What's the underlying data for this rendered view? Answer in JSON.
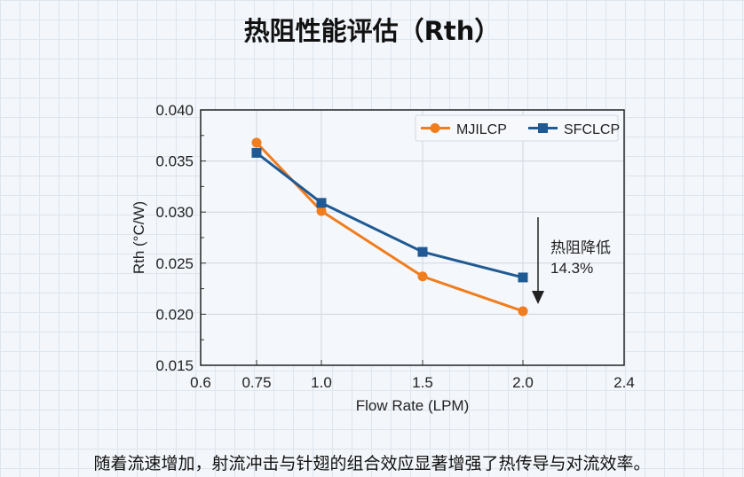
{
  "title": "热阻性能评估（Rth）",
  "caption": "随着流速增加，射流冲击与针翅的组合效应显著增强了热传导与对流效率。",
  "chart_data": {
    "type": "line",
    "xlabel": "Flow Rate (LPM)",
    "ylabel": "Rth (°C/W)",
    "xticks": [
      "0.6",
      "0.75",
      "1.0",
      "1.5",
      "2.0",
      "2.4"
    ],
    "yticks": [
      "0.040",
      "0.035",
      "0.030",
      "0.025",
      "0.020",
      "0.015"
    ],
    "ylim": [
      0.015,
      0.04
    ],
    "xlim": [
      0.6,
      2.4
    ],
    "grid": true,
    "legend": "top-right",
    "x": [
      0.75,
      1.0,
      1.5,
      2.0
    ],
    "series": [
      {
        "name": "MJILCP",
        "color": "#f07d1e",
        "marker": "circle",
        "values": [
          0.0368,
          0.0301,
          0.0237,
          0.0203
        ]
      },
      {
        "name": "SFCLCP",
        "color": "#1f5a94",
        "marker": "square",
        "values": [
          0.0358,
          0.0309,
          0.0261,
          0.0236
        ]
      }
    ],
    "annotation": {
      "line1": "热阻降低",
      "line2": "14.3%"
    }
  }
}
